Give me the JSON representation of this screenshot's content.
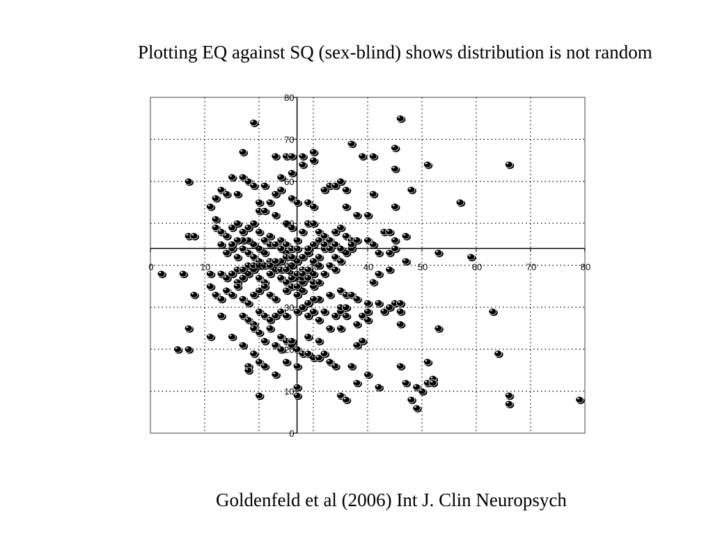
{
  "slide": {
    "title": "Plotting EQ against SQ (sex-blind) shows distribution is not random",
    "citation": "Goldenfeld et al (2006) Int J. Clin Neuropsych"
  },
  "chart_data": {
    "type": "scatter",
    "title": "",
    "xlabel": "",
    "ylabel": "",
    "xlim": [
      0,
      80
    ],
    "ylim": [
      0,
      80
    ],
    "x_ticks": [
      0,
      10,
      20,
      30,
      40,
      50,
      60,
      70,
      80
    ],
    "y_ticks": [
      0,
      10,
      20,
      30,
      40,
      50,
      60,
      70,
      80
    ],
    "grid": true,
    "grid_style": "dotted",
    "axes_cross_at": {
      "x": 27,
      "y": 44
    },
    "marker_color": "#000000",
    "series": [
      {
        "points": [
          [
            46,
            75
          ],
          [
            19,
            74
          ],
          [
            37,
            69
          ],
          [
            45,
            68
          ],
          [
            17,
            67
          ],
          [
            23,
            66
          ],
          [
            25,
            66
          ],
          [
            26,
            66
          ],
          [
            30,
            67
          ],
          [
            28,
            66
          ],
          [
            39,
            66
          ],
          [
            41,
            66
          ],
          [
            45,
            63
          ],
          [
            51,
            64
          ],
          [
            66,
            64
          ],
          [
            7,
            60
          ],
          [
            15,
            61
          ],
          [
            17,
            61
          ],
          [
            18,
            60
          ],
          [
            19,
            59
          ],
          [
            21,
            59
          ],
          [
            24,
            61
          ],
          [
            26,
            62
          ],
          [
            28,
            64
          ],
          [
            30,
            65
          ],
          [
            32,
            58
          ],
          [
            33,
            59
          ],
          [
            34,
            59
          ],
          [
            35,
            60
          ],
          [
            36,
            58
          ],
          [
            41,
            57
          ],
          [
            48,
            58
          ],
          [
            57,
            55
          ],
          [
            11,
            54
          ],
          [
            12,
            56
          ],
          [
            13,
            58
          ],
          [
            14,
            57
          ],
          [
            16,
            57
          ],
          [
            20,
            55
          ],
          [
            22,
            55
          ],
          [
            23,
            57
          ],
          [
            24,
            58
          ],
          [
            26,
            56
          ],
          [
            27,
            55
          ],
          [
            29,
            55
          ],
          [
            30,
            54
          ],
          [
            36,
            54
          ],
          [
            45,
            54
          ],
          [
            38,
            52
          ],
          [
            40,
            52
          ],
          [
            20,
            53
          ],
          [
            21,
            53
          ],
          [
            23,
            52
          ],
          [
            25,
            50
          ],
          [
            26,
            49
          ],
          [
            12,
            51
          ],
          [
            12,
            49
          ],
          [
            13,
            48
          ],
          [
            14,
            47
          ],
          [
            15,
            49
          ],
          [
            16,
            50
          ],
          [
            17,
            48
          ],
          [
            18,
            49
          ],
          [
            19,
            50
          ],
          [
            20,
            48
          ],
          [
            22,
            47
          ],
          [
            24,
            46
          ],
          [
            25,
            45
          ],
          [
            26,
            44
          ],
          [
            27,
            46
          ],
          [
            28,
            48
          ],
          [
            29,
            50
          ],
          [
            30,
            50
          ],
          [
            31,
            48
          ],
          [
            32,
            47
          ],
          [
            33,
            46
          ],
          [
            34,
            48
          ],
          [
            35,
            49
          ],
          [
            36,
            47
          ],
          [
            37,
            46
          ],
          [
            38,
            46
          ],
          [
            40,
            46
          ],
          [
            41,
            45
          ],
          [
            43,
            48
          ],
          [
            44,
            48
          ],
          [
            45,
            46
          ],
          [
            47,
            47
          ],
          [
            7,
            47
          ],
          [
            8,
            47
          ],
          [
            13,
            45
          ],
          [
            15,
            44
          ],
          [
            16,
            42
          ],
          [
            17,
            44
          ],
          [
            18,
            43
          ],
          [
            19,
            42
          ],
          [
            20,
            41
          ],
          [
            21,
            43
          ],
          [
            22,
            41
          ],
          [
            23,
            40
          ],
          [
            24,
            41
          ],
          [
            25,
            43
          ],
          [
            27,
            44
          ],
          [
            29,
            43
          ],
          [
            31,
            42
          ],
          [
            32,
            44
          ],
          [
            34,
            42
          ],
          [
            35,
            41
          ],
          [
            36,
            43
          ],
          [
            37,
            44
          ],
          [
            42,
            43
          ],
          [
            44,
            43
          ],
          [
            45,
            44
          ],
          [
            47,
            41
          ],
          [
            53,
            43
          ],
          [
            59,
            42
          ],
          [
            2,
            38
          ],
          [
            6,
            38
          ],
          [
            11,
            38
          ],
          [
            13,
            38
          ],
          [
            14,
            37
          ],
          [
            15,
            38
          ],
          [
            16,
            36
          ],
          [
            17,
            37
          ],
          [
            18,
            38
          ],
          [
            19,
            39
          ],
          [
            20,
            37
          ],
          [
            21,
            36
          ],
          [
            22,
            38
          ],
          [
            23,
            39
          ],
          [
            24,
            37
          ],
          [
            25,
            36
          ],
          [
            26,
            38
          ],
          [
            27,
            37
          ],
          [
            28,
            39
          ],
          [
            30,
            38
          ],
          [
            32,
            38
          ],
          [
            42,
            38
          ],
          [
            44,
            39
          ],
          [
            8,
            33
          ],
          [
            11,
            35
          ],
          [
            12,
            33
          ],
          [
            13,
            32
          ],
          [
            14,
            34
          ],
          [
            15,
            33
          ],
          [
            16,
            35
          ],
          [
            17,
            32
          ],
          [
            18,
            31
          ],
          [
            19,
            33
          ],
          [
            20,
            34
          ],
          [
            21,
            35
          ],
          [
            22,
            33
          ],
          [
            23,
            32
          ],
          [
            25,
            34
          ],
          [
            26,
            35
          ],
          [
            27,
            33
          ],
          [
            28,
            34
          ],
          [
            30,
            35
          ],
          [
            31,
            32
          ],
          [
            33,
            33
          ],
          [
            35,
            34
          ],
          [
            36,
            33
          ],
          [
            37,
            33
          ],
          [
            38,
            32
          ],
          [
            41,
            36
          ],
          [
            42,
            31
          ],
          [
            45,
            31
          ],
          [
            46,
            31
          ],
          [
            13,
            28
          ],
          [
            17,
            28
          ],
          [
            18,
            27
          ],
          [
            19,
            26
          ],
          [
            20,
            29
          ],
          [
            21,
            28
          ],
          [
            22,
            27
          ],
          [
            23,
            28
          ],
          [
            24,
            29
          ],
          [
            25,
            28
          ],
          [
            27,
            29
          ],
          [
            28,
            30
          ],
          [
            29,
            28
          ],
          [
            30,
            29
          ],
          [
            31,
            27
          ],
          [
            32,
            29
          ],
          [
            34,
            28
          ],
          [
            35,
            29
          ],
          [
            36,
            28
          ],
          [
            39,
            28
          ],
          [
            40,
            29
          ],
          [
            43,
            29
          ],
          [
            44,
            30
          ],
          [
            46,
            29
          ],
          [
            40,
            27
          ],
          [
            38,
            26
          ],
          [
            46,
            26
          ],
          [
            19,
            25
          ],
          [
            20,
            24
          ],
          [
            22,
            25
          ],
          [
            24,
            23
          ],
          [
            25,
            22
          ],
          [
            26,
            21
          ],
          [
            27,
            20
          ],
          [
            29,
            23
          ],
          [
            31,
            22
          ],
          [
            33,
            25
          ],
          [
            35,
            25
          ],
          [
            7,
            25
          ],
          [
            11,
            23
          ],
          [
            15,
            23
          ],
          [
            17,
            21
          ],
          [
            19,
            19
          ],
          [
            21,
            22
          ],
          [
            23,
            21
          ],
          [
            24,
            20
          ],
          [
            26,
            22
          ],
          [
            28,
            19
          ],
          [
            30,
            18
          ],
          [
            31,
            18
          ],
          [
            32,
            19
          ],
          [
            33,
            17
          ],
          [
            34,
            16
          ],
          [
            5,
            20
          ],
          [
            7,
            20
          ],
          [
            18,
            16
          ],
          [
            18,
            15
          ],
          [
            20,
            17
          ],
          [
            21,
            16
          ],
          [
            23,
            14
          ],
          [
            25,
            17
          ],
          [
            27,
            16
          ],
          [
            29,
            19
          ],
          [
            35,
            9
          ],
          [
            36,
            8
          ],
          [
            37,
            16
          ],
          [
            38,
            12
          ],
          [
            40,
            14
          ],
          [
            42,
            11
          ],
          [
            46,
            16
          ],
          [
            47,
            12
          ],
          [
            49,
            11
          ],
          [
            50,
            10
          ],
          [
            51,
            12
          ],
          [
            52,
            13
          ],
          [
            51,
            17
          ],
          [
            52,
            12
          ],
          [
            53,
            25
          ],
          [
            48,
            8
          ],
          [
            49,
            6
          ],
          [
            63,
            29
          ],
          [
            64,
            19
          ],
          [
            66,
            9
          ],
          [
            66,
            7
          ],
          [
            79,
            8
          ],
          [
            20,
            9
          ],
          [
            27,
            11
          ],
          [
            27,
            9
          ],
          [
            38,
            21
          ],
          [
            39,
            22
          ],
          [
            35,
            30
          ],
          [
            36,
            30
          ],
          [
            30,
            32
          ],
          [
            29,
            31
          ],
          [
            40,
            31
          ],
          [
            27,
            35
          ],
          [
            28,
            36
          ],
          [
            26,
            40
          ],
          [
            27,
            41
          ],
          [
            28,
            42
          ],
          [
            29,
            44
          ],
          [
            30,
            45
          ],
          [
            31,
            46
          ],
          [
            32,
            45
          ],
          [
            33,
            44
          ],
          [
            34,
            45
          ],
          [
            35,
            44
          ],
          [
            37,
            45
          ],
          [
            30,
            41
          ],
          [
            31,
            40
          ],
          [
            29,
            39
          ],
          [
            28,
            37
          ],
          [
            33,
            40
          ],
          [
            34,
            39
          ],
          [
            21,
            46
          ],
          [
            22,
            45
          ],
          [
            23,
            45
          ],
          [
            24,
            44
          ],
          [
            25,
            42
          ],
          [
            26,
            42
          ],
          [
            20,
            44
          ],
          [
            19,
            45
          ],
          [
            18,
            46
          ],
          [
            17,
            46
          ],
          [
            16,
            46
          ],
          [
            15,
            45
          ],
          [
            14,
            43
          ],
          [
            16,
            39
          ],
          [
            17,
            39
          ],
          [
            18,
            40
          ],
          [
            19,
            40
          ],
          [
            20,
            40
          ],
          [
            21,
            40
          ],
          [
            22,
            40
          ],
          [
            23,
            41
          ],
          [
            24,
            39
          ],
          [
            25,
            39
          ],
          [
            26,
            37
          ],
          [
            27,
            38
          ],
          [
            28,
            38
          ],
          [
            29,
            37
          ],
          [
            30,
            36
          ],
          [
            31,
            36
          ]
        ]
      }
    ]
  }
}
